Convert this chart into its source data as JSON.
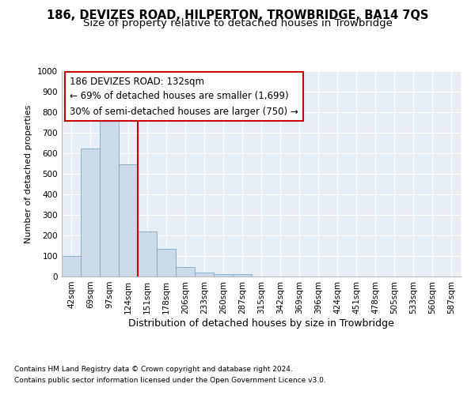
{
  "title1": "186, DEVIZES ROAD, HILPERTON, TROWBRIDGE, BA14 7QS",
  "title2": "Size of property relative to detached houses in Trowbridge",
  "xlabel": "Distribution of detached houses by size in Trowbridge",
  "ylabel": "Number of detached properties",
  "bar_labels": [
    "42sqm",
    "69sqm",
    "97sqm",
    "124sqm",
    "151sqm",
    "178sqm",
    "206sqm",
    "233sqm",
    "260sqm",
    "287sqm",
    "315sqm",
    "342sqm",
    "369sqm",
    "396sqm",
    "424sqm",
    "451sqm",
    "478sqm",
    "505sqm",
    "533sqm",
    "560sqm",
    "587sqm"
  ],
  "bar_values": [
    100,
    625,
    785,
    545,
    220,
    135,
    45,
    20,
    10,
    10,
    0,
    0,
    0,
    0,
    0,
    0,
    0,
    0,
    0,
    0,
    0
  ],
  "bar_color": "#ccd9e8",
  "bar_edgecolor": "#7aaac8",
  "vline_x": 3.5,
  "vline_color": "#cc0000",
  "annotation_text": "186 DEVIZES ROAD: 132sqm\n← 69% of detached houses are smaller (1,699)\n30% of semi-detached houses are larger (750) →",
  "annotation_box_color": "#ffffff",
  "annotation_box_edgecolor": "#cc0000",
  "ylim": [
    0,
    1000
  ],
  "yticks": [
    0,
    100,
    200,
    300,
    400,
    500,
    600,
    700,
    800,
    900,
    1000
  ],
  "bg_color": "#e8eef5",
  "footer1": "Contains HM Land Registry data © Crown copyright and database right 2024.",
  "footer2": "Contains public sector information licensed under the Open Government Licence v3.0.",
  "title1_fontsize": 10.5,
  "title2_fontsize": 9.5,
  "xlabel_fontsize": 9,
  "ylabel_fontsize": 8,
  "tick_fontsize": 7.5,
  "annotation_fontsize": 8.5,
  "footer_fontsize": 6.5
}
